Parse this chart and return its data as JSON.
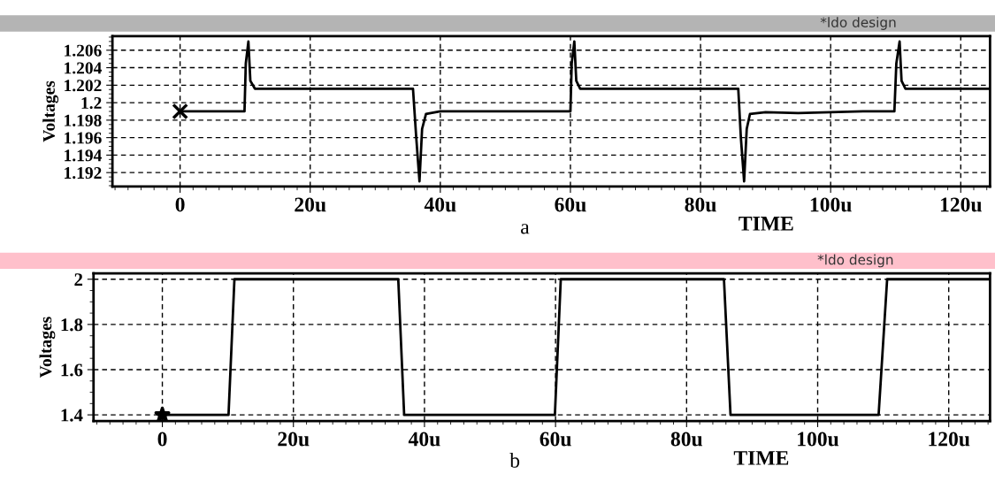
{
  "chart_data": [
    {
      "type": "line",
      "title": "*ldo design",
      "xlabel": "TIME",
      "ylabel": "Voltages",
      "annotations": [
        "a"
      ],
      "xlim": [
        -10.4,
        124.5
      ],
      "ylim": [
        1.1904,
        1.2076
      ],
      "xticks": [
        {
          "value": 0,
          "label": "0"
        },
        {
          "value": 20,
          "label": "20u"
        },
        {
          "value": 40,
          "label": "40u"
        },
        {
          "value": 60,
          "label": "60u"
        },
        {
          "value": 80,
          "label": "80u"
        },
        {
          "value": 100,
          "label": "100u"
        },
        {
          "value": 120,
          "label": "120u"
        }
      ],
      "yticks": [
        1.192,
        1.194,
        1.196,
        1.198,
        {
          "value": 1.2,
          "label": "1.2"
        },
        1.202,
        1.204,
        1.206
      ],
      "grid": true,
      "line_style": "solid",
      "marker": "none",
      "series": [
        {
          "color": "#000000",
          "x": [
            0,
            9.9,
            10.1,
            10.5,
            10.8,
            11.5,
            35.8,
            36.3,
            36.8,
            37.2,
            37.8,
            40,
            60.0,
            60.2,
            60.6,
            60.9,
            61.5,
            85.8,
            86.2,
            86.7,
            87.1,
            87.6,
            90,
            95,
            100,
            105,
            109.8,
            110.1,
            110.6,
            110.9,
            111.5,
            124.5
          ],
          "values": [
            1.199,
            1.199,
            1.2045,
            1.207,
            1.2025,
            1.2016,
            1.2016,
            1.196,
            1.191,
            1.197,
            1.1987,
            1.199,
            1.199,
            1.2045,
            1.207,
            1.2025,
            1.2016,
            1.2016,
            1.196,
            1.191,
            1.197,
            1.1987,
            1.1989,
            1.1988,
            1.1989,
            1.199,
            1.199,
            1.2045,
            1.207,
            1.2025,
            1.2016,
            1.2016
          ]
        },
        {
          "type": "scatter",
          "color": "#000000",
          "marker": "cross",
          "x": [
            0
          ],
          "values": [
            1.199
          ]
        }
      ]
    },
    {
      "type": "line",
      "title": "*ldo design",
      "xlabel": "TIME",
      "ylabel": "Voltages",
      "annotations": [
        "b"
      ],
      "xlim": [
        -10.5,
        126.3
      ],
      "ylim": [
        1.373,
        2.026
      ],
      "xticks": [
        {
          "value": 0,
          "label": "0"
        },
        {
          "value": 20,
          "label": "20u"
        },
        {
          "value": 40,
          "label": "40u"
        },
        {
          "value": 60,
          "label": "60u"
        },
        {
          "value": 80,
          "label": "80u"
        },
        {
          "value": 100,
          "label": "100u"
        },
        {
          "value": 120,
          "label": "120u"
        }
      ],
      "yticks": [
        {
          "value": 1.4,
          "label": "1.4"
        },
        {
          "value": 1.6,
          "label": "1.6"
        },
        {
          "value": 1.8,
          "label": "1.8"
        },
        {
          "value": 2,
          "label": "2"
        }
      ],
      "grid": true,
      "line_style": "solid",
      "marker": "none",
      "series": [
        {
          "color": "#000000",
          "x": [
            0,
            10.1,
            11.0,
            36.0,
            36.9,
            59.9,
            60.8,
            85.7,
            86.7,
            109.3,
            110.6,
            126.3
          ],
          "values": [
            1.4,
            1.4,
            2,
            2,
            1.4,
            1.4,
            2,
            2,
            1.4,
            1.4,
            2,
            2
          ]
        },
        {
          "type": "scatter",
          "color": "#000000",
          "marker": "star",
          "x": [
            0
          ],
          "values": [
            1.4
          ]
        }
      ]
    }
  ]
}
